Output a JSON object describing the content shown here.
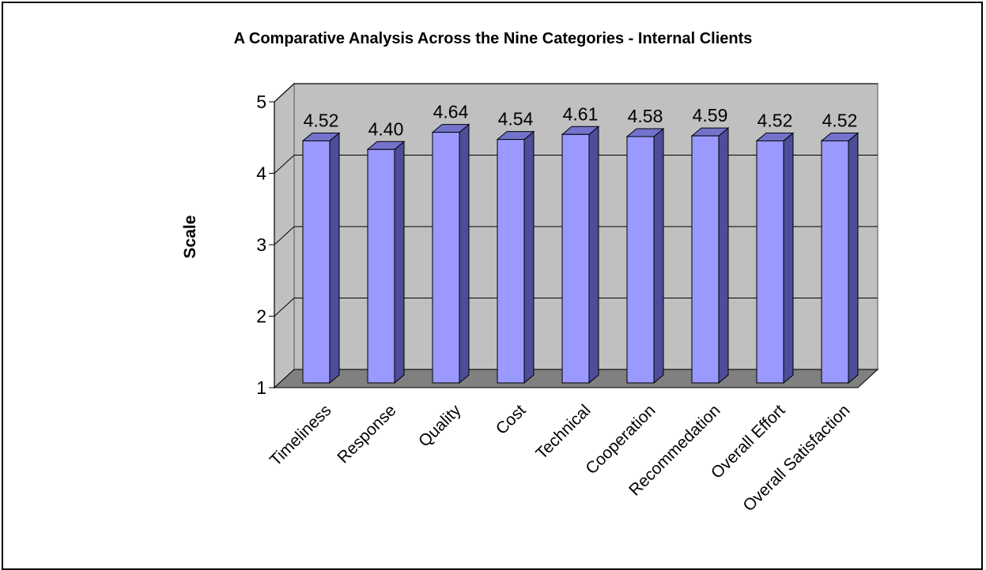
{
  "chart_data": {
    "type": "bar",
    "title": "A Comparative Analysis Across the Nine Categories - Internal Clients",
    "xlabel": "",
    "ylabel": "Scale",
    "categories": [
      "Timeliness",
      "Response",
      "Quality",
      "Cost",
      "Technical",
      "Cooperation",
      "Recommedation",
      "Overall Effort",
      "Overall Satisfaction"
    ],
    "values": [
      4.52,
      4.4,
      4.64,
      4.54,
      4.61,
      4.58,
      4.59,
      4.52,
      4.52
    ],
    "value_labels": [
      "4.52",
      "4.40",
      "4.64",
      "4.54",
      "4.61",
      "4.58",
      "4.59",
      "4.52",
      "4.52"
    ],
    "ylim": [
      1,
      5
    ],
    "yticks": [
      "1",
      "2",
      "3",
      "4",
      "5"
    ],
    "grid": true,
    "legend": "none",
    "three_d": true,
    "colors": {
      "bar_front": "#9999ff",
      "bar_side": "#4d4d99",
      "bar_top": "#7373cc",
      "back_wall": "#c0c0c0",
      "side_wall": "#c0c0c0",
      "floor": "#808080"
    }
  }
}
